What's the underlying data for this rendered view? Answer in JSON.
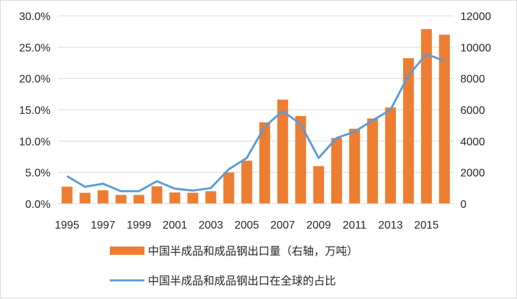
{
  "chart_data": {
    "type": "bar",
    "x": [
      1995,
      1996,
      1997,
      1998,
      1999,
      2000,
      2001,
      2002,
      2003,
      2004,
      2005,
      2006,
      2007,
      2008,
      2009,
      2010,
      2011,
      2012,
      2013,
      2014,
      2015,
      2016
    ],
    "x_tick_labels": [
      "1995",
      "1997",
      "1999",
      "2001",
      "2003",
      "2005",
      "2007",
      "2009",
      "2011",
      "2013",
      "2015"
    ],
    "y_left_tick_labels": [
      "0.0%",
      "5.0%",
      "10.0%",
      "15.0%",
      "20.0%",
      "25.0%",
      "30.0%"
    ],
    "y_right_tick_labels": [
      "0",
      "2000",
      "4000",
      "6000",
      "8000",
      "10000",
      "12000"
    ],
    "ylim_left": [
      0,
      30
    ],
    "ylim_right": [
      0,
      12000
    ],
    "grid": true,
    "legend_position": "bottom",
    "series": [
      {
        "name": "中国半成品和成品钢出口量（右轴，万吨）",
        "type": "bar",
        "axis": "right",
        "color": "#ed7d31",
        "values": [
          1090,
          700,
          860,
          560,
          560,
          1110,
          720,
          700,
          800,
          2000,
          2750,
          5200,
          6650,
          5600,
          2400,
          4200,
          4790,
          5450,
          6150,
          9300,
          11150,
          10800
        ]
      },
      {
        "name": "中国半成品和成品钢出口在全球的占比",
        "type": "line",
        "axis": "left",
        "color": "#5b9bd5",
        "values": [
          4.4,
          2.7,
          3.2,
          2.0,
          2.0,
          3.6,
          2.4,
          2.1,
          2.5,
          5.5,
          7.3,
          12.3,
          14.8,
          12.7,
          7.3,
          10.5,
          11.5,
          13.3,
          15.0,
          20.5,
          23.9,
          22.8
        ]
      }
    ]
  }
}
